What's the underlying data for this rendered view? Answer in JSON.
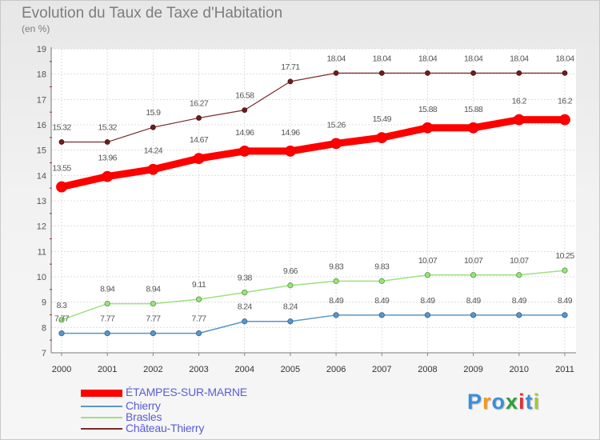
{
  "title": "Evolution du Taux de Taxe d'Habitation",
  "subtitle": "(en %)",
  "logo": {
    "text": "Proxiti"
  },
  "chart_data": {
    "type": "line",
    "x": [
      "2000",
      "2001",
      "2002",
      "2003",
      "2004",
      "2005",
      "2006",
      "2007",
      "2008",
      "2009",
      "2010",
      "2011"
    ],
    "ylim": [
      7,
      19
    ],
    "yticks": [
      "7",
      "8",
      "9",
      "10",
      "11",
      "12",
      "13",
      "14",
      "15",
      "16",
      "17",
      "18",
      "19"
    ],
    "grid": true,
    "legend_position": "bottom-left",
    "series": [
      {
        "name": "ÉTAMPES-SUR-MARNE",
        "color": "#ff0000",
        "values": [
          13.55,
          13.96,
          14.24,
          14.67,
          14.96,
          14.96,
          15.26,
          15.49,
          15.88,
          15.88,
          16.2,
          16.2
        ],
        "labels": [
          "13.55",
          "13.96",
          "14.24",
          "14.67",
          "14.96",
          "14.96",
          "15.26",
          "15.49",
          "15.88",
          "15.88",
          "16.2",
          "16.2"
        ]
      },
      {
        "name": "Chierry",
        "color": "#5a96c8",
        "values": [
          7.77,
          7.77,
          7.77,
          7.77,
          8.24,
          8.24,
          8.49,
          8.49,
          8.49,
          8.49,
          8.49,
          8.49
        ],
        "labels": [
          "7.77",
          "7.77",
          "7.77",
          "7.77",
          "8.24",
          "8.24",
          "8.49",
          "8.49",
          "8.49",
          "8.49",
          "8.49",
          "8.49"
        ]
      },
      {
        "name": "Brasles",
        "color": "#9ee080",
        "values": [
          8.3,
          8.94,
          8.94,
          9.11,
          9.38,
          9.66,
          9.83,
          9.83,
          10.07,
          10.07,
          10.07,
          10.25
        ],
        "labels": [
          "8.3",
          "8.94",
          "8.94",
          "9.11",
          "9.38",
          "9.66",
          "9.83",
          "9.83",
          "10.07",
          "10.07",
          "10.07",
          "10.25"
        ]
      },
      {
        "name": "Château-Thierry",
        "color": "#7a2a2a",
        "values": [
          15.32,
          15.32,
          15.9,
          16.27,
          16.58,
          17.71,
          18.04,
          18.04,
          18.04,
          18.04,
          18.04,
          18.04
        ],
        "labels": [
          "15.32",
          "15.32",
          "15.9",
          "16.27",
          "16.58",
          "17.71",
          "18.04",
          "18.04",
          "18.04",
          "18.04",
          "18.04",
          "18.04"
        ]
      }
    ]
  }
}
